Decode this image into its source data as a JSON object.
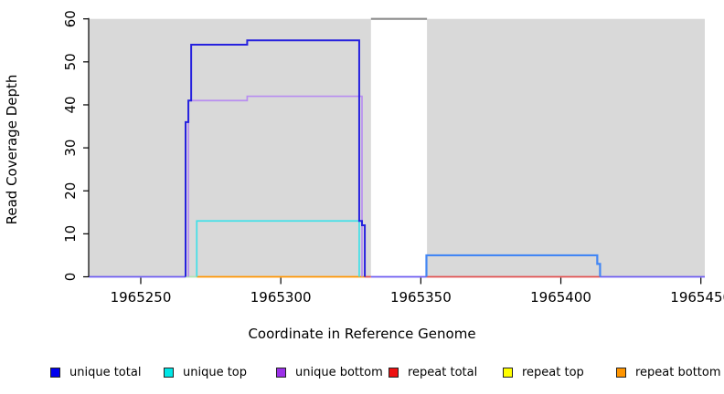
{
  "figure": {
    "xlabel": "Coordinate in Reference Genome",
    "ylabel": "Read Coverage Depth"
  },
  "legend": {
    "items": [
      {
        "label": "unique total",
        "color": "#0000ee"
      },
      {
        "label": "unique top",
        "color": "#00e6e6"
      },
      {
        "label": "unique bottom",
        "color": "#9b30e8"
      },
      {
        "label": "repeat total",
        "color": "#ee1111"
      },
      {
        "label": "repeat top",
        "color": "#ffff00"
      },
      {
        "label": "repeat bottom",
        "color": "#ff9500"
      }
    ]
  },
  "chart_data": {
    "type": "line",
    "title": "",
    "xlabel": "Coordinate in Reference Genome",
    "ylabel": "Read Coverage Depth",
    "xlim": [
      1965231.4,
      1965451.4
    ],
    "ylim": [
      0,
      60
    ],
    "x_ticks": [
      1965250,
      1965300,
      1965350,
      1965400,
      1965450
    ],
    "y_ticks": [
      0,
      10,
      20,
      30,
      40,
      50,
      60
    ],
    "grid": false,
    "legend_position": "bottom",
    "background_bands": [
      {
        "x1": 1965231.4,
        "x2": 1965332.2,
        "color": "#d9d9d9"
      },
      {
        "x1": 1965352.2,
        "x2": 1965451.4,
        "color": "#d9d9d9"
      }
    ],
    "gap_cap_line": {
      "x1": 1965332.2,
      "x2": 1965352.2,
      "y": 60,
      "color": "#8c8c8c"
    },
    "series": [
      {
        "name": "unique total",
        "points": [
          [
            1965231,
            0
          ],
          [
            1965266,
            36
          ],
          [
            1965267,
            41
          ],
          [
            1965268,
            54
          ],
          [
            1965288,
            55
          ],
          [
            1965328,
            13
          ],
          [
            1965329,
            12
          ],
          [
            1965330,
            0
          ],
          [
            1965352,
            5
          ],
          [
            1965413,
            3
          ],
          [
            1965414,
            0
          ],
          [
            1965451,
            0
          ]
        ]
      },
      {
        "name": "unique top",
        "points": [
          [
            1965231,
            0
          ],
          [
            1965270,
            13
          ],
          [
            1965328,
            0
          ],
          [
            1965451,
            0
          ]
        ]
      },
      {
        "name": "unique bottom",
        "points": [
          [
            1965231,
            0
          ],
          [
            1965267,
            41
          ],
          [
            1965288,
            42
          ],
          [
            1965329,
            0
          ],
          [
            1965451,
            0
          ]
        ]
      },
      {
        "name": "repeat total",
        "points": [
          [
            1965231,
            0
          ],
          [
            1965451,
            0
          ]
        ]
      },
      {
        "name": "repeat top",
        "points": [
          [
            1965231,
            0
          ],
          [
            1965451,
            0
          ]
        ]
      },
      {
        "name": "repeat bottom",
        "points": [
          [
            1965231,
            0
          ],
          [
            1965451,
            0
          ]
        ]
      }
    ],
    "render_paths": [
      {
        "name": "unique-bottom-line",
        "color": "#b88df0",
        "width": 1.7,
        "points": [
          [
            1965267,
            0
          ],
          [
            1965267,
            41
          ],
          [
            1965288,
            41
          ],
          [
            1965288,
            42
          ],
          [
            1965329,
            42
          ],
          [
            1965329,
            0
          ]
        ]
      },
      {
        "name": "unique-top-line",
        "color": "#41e0e8",
        "width": 1.7,
        "points": [
          [
            1965270,
            0
          ],
          [
            1965270,
            13
          ],
          [
            1965328,
            13
          ],
          [
            1965328,
            0
          ]
        ]
      },
      {
        "name": "unique-total-line-left",
        "color": "#2621de",
        "width": 2,
        "points": [
          [
            1965266,
            0
          ],
          [
            1965266,
            36
          ],
          [
            1965267,
            36
          ],
          [
            1965267,
            41
          ],
          [
            1965268,
            41
          ],
          [
            1965268,
            54
          ],
          [
            1965288,
            54
          ],
          [
            1965288,
            55
          ],
          [
            1965328,
            55
          ],
          [
            1965328,
            13
          ],
          [
            1965329,
            13
          ],
          [
            1965329,
            12
          ],
          [
            1965330,
            12
          ],
          [
            1965330,
            0
          ]
        ]
      },
      {
        "name": "unique-total-line-right",
        "color": "#4286f4",
        "width": 2.2,
        "points": [
          [
            1965352,
            0
          ],
          [
            1965352,
            5
          ],
          [
            1965413,
            5
          ],
          [
            1965413,
            3
          ],
          [
            1965414,
            3
          ],
          [
            1965414,
            0
          ]
        ]
      }
    ],
    "baseline_segments": [
      {
        "x1": 1965231.4,
        "x2": 1965266,
        "color": "#6e5cf0"
      },
      {
        "x1": 1965266,
        "x2": 1965270,
        "color": "#b4e3b4"
      },
      {
        "x1": 1965270,
        "x2": 1965330,
        "color": "#ff9500"
      },
      {
        "x1": 1965330,
        "x2": 1965332.2,
        "color": "#e05050"
      },
      {
        "x1": 1965332.2,
        "x2": 1965352,
        "color": "#6e5cf0"
      },
      {
        "x1": 1965352,
        "x2": 1965414,
        "color": "#e05050"
      },
      {
        "x1": 1965414,
        "x2": 1965451.4,
        "color": "#6e5cf0"
      }
    ]
  }
}
